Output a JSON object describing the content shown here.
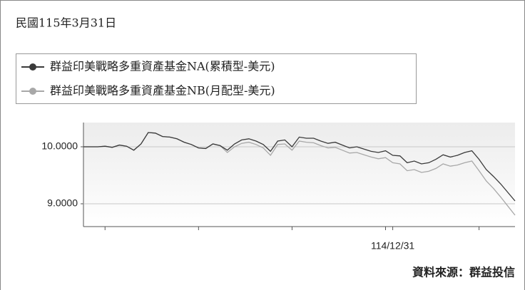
{
  "chart_data": {
    "type": "line",
    "title": "民國115年3月31日",
    "source": "資料來源：群益投信",
    "categories": [
      null,
      null,
      null,
      null,
      null,
      null,
      null,
      null,
      null,
      null,
      null,
      null,
      null,
      null,
      null,
      null,
      null,
      null,
      null,
      null,
      null,
      null,
      null,
      null,
      null,
      null,
      null,
      null,
      null,
      null,
      null,
      null,
      null,
      null,
      null,
      null,
      null,
      null,
      null,
      null,
      null,
      null,
      null,
      "114/12/31",
      null,
      null,
      null,
      null,
      null,
      null,
      null,
      null,
      null,
      null,
      null,
      null,
      null,
      null,
      null,
      null,
      null
    ],
    "series": [
      {
        "name": "群益印美戰略多重資產基金NA(累積型-美元)",
        "color": "#3a3a3a",
        "values": [
          10.0,
          10.0,
          10.0,
          10.01,
          9.99,
          10.03,
          10.01,
          9.94,
          10.05,
          10.25,
          10.24,
          10.18,
          10.17,
          10.14,
          10.08,
          10.04,
          9.98,
          9.97,
          10.05,
          10.02,
          9.94,
          10.05,
          10.12,
          10.14,
          10.1,
          10.04,
          9.92,
          10.1,
          10.12,
          10.0,
          10.17,
          10.15,
          10.15,
          10.1,
          10.06,
          10.08,
          10.03,
          9.98,
          10.0,
          9.96,
          9.92,
          9.9,
          9.93,
          9.85,
          9.84,
          9.72,
          9.75,
          9.7,
          9.72,
          9.78,
          9.86,
          9.82,
          9.85,
          9.9,
          9.93,
          9.78,
          9.6,
          9.48,
          9.35,
          9.2,
          9.05
        ]
      },
      {
        "name": "群益印美戰略多重資產基金NB(月配型-美元)",
        "color": "#a8a8a8",
        "values": [
          10.0,
          10.0,
          10.0,
          10.01,
          9.99,
          10.03,
          10.01,
          9.94,
          10.05,
          10.25,
          10.24,
          10.18,
          10.17,
          10.14,
          10.08,
          10.04,
          9.98,
          9.97,
          10.05,
          10.02,
          9.9,
          10.0,
          10.06,
          10.08,
          10.04,
          9.98,
          9.85,
          10.04,
          10.05,
          9.94,
          10.1,
          10.08,
          10.07,
          10.02,
          9.98,
          9.99,
          9.94,
          9.89,
          9.9,
          9.86,
          9.82,
          9.79,
          9.81,
          9.72,
          9.7,
          9.58,
          9.6,
          9.55,
          9.57,
          9.62,
          9.7,
          9.66,
          9.68,
          9.72,
          9.75,
          9.58,
          9.4,
          9.27,
          9.12,
          8.96,
          8.8
        ]
      }
    ],
    "ylim": [
      8.6,
      10.425
    ],
    "yticks": [
      {
        "value": 9,
        "label": "9.0000"
      },
      {
        "value": 10,
        "label": "10.0000"
      }
    ],
    "grid": true
  }
}
